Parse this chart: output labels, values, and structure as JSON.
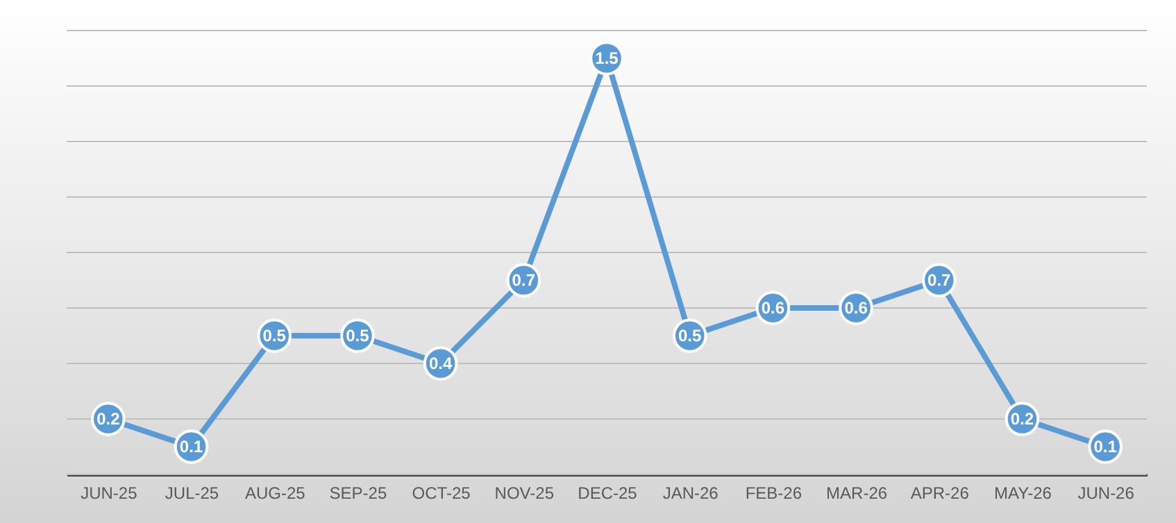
{
  "chart_data": {
    "type": "line",
    "categories": [
      "JUN-25",
      "JUL-25",
      "AUG-25",
      "SEP-25",
      "OCT-25",
      "NOV-25",
      "DEC-25",
      "JAN-26",
      "FEB-26",
      "MAR-26",
      "APR-26",
      "MAY-26",
      "JUN-26"
    ],
    "series": [
      {
        "color": "#5b9bd5",
        "values": [
          0.2,
          0.1,
          0.5,
          0.5,
          0.4,
          0.7,
          1.5,
          0.5,
          0.6,
          0.6,
          0.7,
          0.2,
          0.1
        ]
      }
    ],
    "ylim": [
      0,
      1.6
    ],
    "yticks": [
      {
        "value": 0,
        "label": null
      },
      {
        "value": 0.2,
        "label": null
      },
      {
        "value": 0.4,
        "label": null
      },
      {
        "value": 0.6,
        "label": null
      },
      {
        "value": 0.8,
        "label": null
      },
      {
        "value": 1.0,
        "label": null
      },
      {
        "value": 1.2,
        "label": null
      },
      {
        "value": 1.4,
        "label": null
      },
      {
        "value": 1.6,
        "label": null
      }
    ],
    "grid": "y",
    "tick_labels": "x",
    "marker": "circle",
    "data_labels": true,
    "line_style": "solid",
    "legend": false
  }
}
